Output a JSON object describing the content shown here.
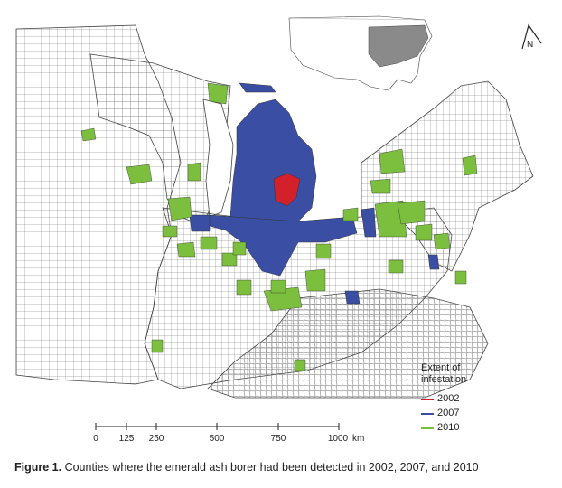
{
  "legend": {
    "title_line1": "Extent of",
    "title_line2": "infestation",
    "items": [
      {
        "label": "2002",
        "color": "#d4202a"
      },
      {
        "label": "2007",
        "color": "#3a4ea3"
      },
      {
        "label": "2010",
        "color": "#7cbf3f"
      }
    ]
  },
  "scale_bar": {
    "ticks": [
      "0",
      "125",
      "250",
      "500",
      "750",
      "1000"
    ],
    "unit": "km"
  },
  "compass": {
    "label": "N"
  },
  "caption": {
    "figure_label": "Figure 1.",
    "text": "Counties where the emerald ash borer had been detected in 2002, 2007, and 2010"
  },
  "colors": {
    "county_border": "#555555",
    "land": "#ffffff",
    "inset_highlight": "#8a8a8a"
  }
}
